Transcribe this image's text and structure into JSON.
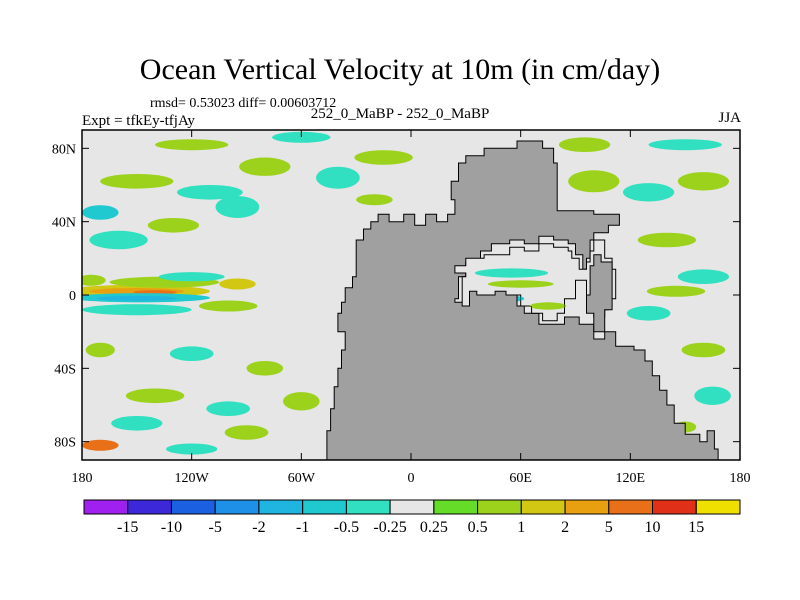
{
  "chart_data": {
    "type": "heatmap",
    "title": "Ocean Vertical Velocity at 10m (in cm/day)",
    "stats_text": "rmsd= 0.53023  diff= 0.00603712",
    "expt_text": "Expt = tfkEy-tfjAy",
    "case_text": "252_0_MaBP - 252_0_MaBP",
    "season_text": "JJA",
    "x_tick_labels": [
      "180",
      "120W",
      "60W",
      "0",
      "60E",
      "120E",
      "180"
    ],
    "x_tick_values": [
      -180,
      -120,
      -60,
      0,
      60,
      120,
      180
    ],
    "y_tick_labels": [
      "80N",
      "40N",
      "0",
      "40S",
      "80S"
    ],
    "y_tick_values": [
      80,
      40,
      0,
      -40,
      -80
    ],
    "xlim": [
      -180,
      180
    ],
    "ylim": [
      -90,
      90
    ],
    "land_color": "#a0a0a0",
    "colorbar": {
      "labels": [
        "-15",
        "-10",
        "-5",
        "-2",
        "-1",
        "-0.5",
        "-0.25",
        "0.25",
        "0.5",
        "1",
        "2",
        "5",
        "10",
        "15"
      ],
      "colors": [
        "#a020f0",
        "#3c28d8",
        "#1a60e0",
        "#1e90e8",
        "#20b4e0",
        "#20c8d0",
        "#30e0c0",
        "#e6e6e6",
        "#64dc28",
        "#9cd21c",
        "#d2c814",
        "#e8a010",
        "#e87018",
        "#e03018",
        "#f0e000"
      ]
    },
    "land_polygon": [
      [
        -46,
        -80
      ],
      [
        -46,
        -74
      ],
      [
        -44,
        -74
      ],
      [
        -44,
        -62
      ],
      [
        -42,
        -62
      ],
      [
        -42,
        -50
      ],
      [
        -40,
        -50
      ],
      [
        -40,
        -40
      ],
      [
        -38,
        -40
      ],
      [
        -38,
        -30
      ],
      [
        -36,
        -30
      ],
      [
        -36,
        -20
      ],
      [
        -40,
        -20
      ],
      [
        -40,
        -10
      ],
      [
        -38,
        -10
      ],
      [
        -38,
        -4
      ],
      [
        -36,
        -4
      ],
      [
        -36,
        4
      ],
      [
        -32,
        4
      ],
      [
        -32,
        10
      ],
      [
        -30,
        10
      ],
      [
        -30,
        20
      ],
      [
        -30,
        30
      ],
      [
        -26,
        30
      ],
      [
        -26,
        36
      ],
      [
        -22,
        36
      ],
      [
        -22,
        40
      ],
      [
        -18,
        40
      ],
      [
        -18,
        44
      ],
      [
        -12,
        44
      ],
      [
        -12,
        40
      ],
      [
        -4,
        40
      ],
      [
        -4,
        44
      ],
      [
        2,
        44
      ],
      [
        2,
        38
      ],
      [
        8,
        38
      ],
      [
        8,
        44
      ],
      [
        14,
        44
      ],
      [
        14,
        40
      ],
      [
        20,
        40
      ],
      [
        20,
        44
      ],
      [
        24,
        44
      ],
      [
        24,
        52
      ],
      [
        22,
        52
      ],
      [
        22,
        62
      ],
      [
        26,
        62
      ],
      [
        26,
        72
      ],
      [
        30,
        72
      ],
      [
        30,
        76
      ],
      [
        40,
        76
      ],
      [
        40,
        80
      ],
      [
        58,
        80
      ],
      [
        58,
        84
      ],
      [
        72,
        84
      ],
      [
        72,
        80
      ],
      [
        78,
        80
      ],
      [
        78,
        72
      ],
      [
        80,
        72
      ],
      [
        80,
        46
      ],
      [
        100,
        46
      ],
      [
        100,
        44
      ],
      [
        114,
        44
      ],
      [
        114,
        38
      ],
      [
        108,
        38
      ],
      [
        108,
        34
      ],
      [
        100,
        34
      ],
      [
        100,
        30
      ],
      [
        98,
        30
      ],
      [
        98,
        20
      ],
      [
        96,
        20
      ],
      [
        96,
        14
      ],
      [
        94,
        14
      ],
      [
        94,
        22
      ],
      [
        90,
        22
      ],
      [
        90,
        28
      ],
      [
        86,
        28
      ],
      [
        86,
        30
      ],
      [
        78,
        30
      ],
      [
        78,
        32
      ],
      [
        70,
        32
      ],
      [
        70,
        28
      ],
      [
        62,
        28
      ],
      [
        62,
        30
      ],
      [
        54,
        30
      ],
      [
        54,
        28
      ],
      [
        44,
        28
      ],
      [
        44,
        24
      ],
      [
        38,
        24
      ],
      [
        38,
        18
      ],
      [
        30,
        18
      ],
      [
        30,
        10
      ],
      [
        26,
        10
      ],
      [
        26,
        -2
      ],
      [
        24,
        -2
      ],
      [
        24,
        -4
      ],
      [
        30,
        -4
      ],
      [
        30,
        4
      ],
      [
        34,
        4
      ],
      [
        34,
        6
      ],
      [
        46,
        6
      ],
      [
        46,
        4
      ],
      [
        58,
        4
      ],
      [
        58,
        -6
      ],
      [
        62,
        -6
      ],
      [
        62,
        -10
      ],
      [
        70,
        -10
      ],
      [
        70,
        -16
      ],
      [
        84,
        -16
      ],
      [
        84,
        -12
      ],
      [
        92,
        -12
      ],
      [
        92,
        -16
      ],
      [
        100,
        -16
      ],
      [
        100,
        -24
      ],
      [
        106,
        -24
      ],
      [
        106,
        -20
      ],
      [
        112,
        -20
      ],
      [
        112,
        -28
      ],
      [
        122,
        -28
      ],
      [
        122,
        -30
      ],
      [
        128,
        -30
      ],
      [
        128,
        -36
      ],
      [
        132,
        -36
      ],
      [
        132,
        -44
      ],
      [
        136,
        -44
      ],
      [
        136,
        -52
      ],
      [
        140,
        -52
      ],
      [
        140,
        -60
      ],
      [
        144,
        -60
      ],
      [
        144,
        -70
      ],
      [
        150,
        -70
      ],
      [
        150,
        -76
      ],
      [
        158,
        -76
      ],
      [
        158,
        -80
      ],
      [
        162,
        -80
      ],
      [
        162,
        -74
      ],
      [
        166,
        -74
      ],
      [
        166,
        -84
      ],
      [
        168,
        -84
      ],
      [
        168,
        -90
      ],
      [
        -46,
        -90
      ]
    ],
    "inner_sea": [
      [
        24,
        16
      ],
      [
        30,
        16
      ],
      [
        30,
        20
      ],
      [
        40,
        20
      ],
      [
        40,
        22
      ],
      [
        54,
        22
      ],
      [
        54,
        26
      ],
      [
        62,
        26
      ],
      [
        62,
        24
      ],
      [
        70,
        24
      ],
      [
        70,
        28
      ],
      [
        78,
        28
      ],
      [
        78,
        26
      ],
      [
        86,
        26
      ],
      [
        86,
        24
      ],
      [
        88,
        24
      ],
      [
        88,
        20
      ],
      [
        92,
        20
      ],
      [
        92,
        14
      ],
      [
        96,
        14
      ],
      [
        96,
        18
      ],
      [
        98,
        18
      ],
      [
        98,
        24
      ],
      [
        100,
        24
      ],
      [
        100,
        30
      ],
      [
        106,
        30
      ],
      [
        106,
        20
      ],
      [
        110,
        20
      ],
      [
        110,
        14
      ],
      [
        112,
        14
      ],
      [
        112,
        -2
      ],
      [
        108,
        -2
      ],
      [
        108,
        -8
      ],
      [
        106,
        -8
      ],
      [
        106,
        -12
      ],
      [
        100,
        -12
      ],
      [
        100,
        -2
      ],
      [
        96,
        -2
      ],
      [
        96,
        8
      ],
      [
        90,
        8
      ],
      [
        90,
        -2
      ],
      [
        84,
        -2
      ],
      [
        84,
        -10
      ],
      [
        80,
        -10
      ],
      [
        80,
        -14
      ],
      [
        72,
        -14
      ],
      [
        72,
        -10
      ],
      [
        66,
        -10
      ],
      [
        66,
        -6
      ],
      [
        60,
        -6
      ],
      [
        60,
        0
      ],
      [
        52,
        0
      ],
      [
        52,
        2
      ],
      [
        46,
        2
      ],
      [
        46,
        0
      ],
      [
        36,
        0
      ],
      [
        36,
        2
      ],
      [
        32,
        2
      ],
      [
        32,
        -6
      ],
      [
        28,
        -6
      ],
      [
        28,
        0
      ],
      [
        28,
        10
      ],
      [
        30,
        10
      ],
      [
        30,
        12
      ],
      [
        24,
        12
      ]
    ],
    "inner_land": [
      [
        96,
        0
      ],
      [
        98,
        0
      ],
      [
        98,
        16
      ],
      [
        100,
        16
      ],
      [
        100,
        22
      ],
      [
        104,
        22
      ],
      [
        104,
        18
      ],
      [
        110,
        18
      ],
      [
        110,
        -8
      ],
      [
        106,
        -8
      ],
      [
        106,
        -20
      ],
      [
        100,
        -20
      ],
      [
        100,
        -10
      ],
      [
        96,
        -10
      ]
    ],
    "anomaly_blobs": [
      {
        "lon": -150,
        "lat": 2,
        "rx": 40,
        "ry": 3.5,
        "v": 1
      },
      {
        "lon": -150,
        "lat": 2,
        "rx": 26,
        "ry": 1.8,
        "v": 2
      },
      {
        "lon": -140,
        "lat": 1.5,
        "rx": 12,
        "ry": 1.2,
        "v": 5
      },
      {
        "lon": -148,
        "lat": -1.5,
        "rx": 38,
        "ry": 2.5,
        "v": -1
      },
      {
        "lon": -150,
        "lat": -1.8,
        "rx": 22,
        "ry": 1.3,
        "v": -2
      },
      {
        "lon": -135,
        "lat": 7,
        "rx": 30,
        "ry": 3,
        "v": 0.5
      },
      {
        "lon": -120,
        "lat": 10,
        "rx": 18,
        "ry": 2.5,
        "v": -0.5
      },
      {
        "lon": -95,
        "lat": 6,
        "rx": 10,
        "ry": 3,
        "v": 1
      },
      {
        "lon": -175,
        "lat": 8,
        "rx": 8,
        "ry": 3,
        "v": 0.5
      },
      {
        "lon": -150,
        "lat": -8,
        "rx": 30,
        "ry": 3,
        "v": -0.5
      },
      {
        "lon": -100,
        "lat": -6,
        "rx": 16,
        "ry": 3,
        "v": 0.5
      },
      {
        "lon": -160,
        "lat": 30,
        "rx": 16,
        "ry": 5,
        "v": -0.5
      },
      {
        "lon": -130,
        "lat": 38,
        "rx": 14,
        "ry": 4,
        "v": 0.5
      },
      {
        "lon": -95,
        "lat": 48,
        "rx": 12,
        "ry": 6,
        "v": -0.5
      },
      {
        "lon": -110,
        "lat": 56,
        "rx": 18,
        "ry": 4,
        "v": -0.5
      },
      {
        "lon": -150,
        "lat": 62,
        "rx": 20,
        "ry": 4,
        "v": 0.5
      },
      {
        "lon": -80,
        "lat": 70,
        "rx": 14,
        "ry": 5,
        "v": 0.5
      },
      {
        "lon": -40,
        "lat": 64,
        "rx": 12,
        "ry": 6,
        "v": -0.5
      },
      {
        "lon": -15,
        "lat": 75,
        "rx": 16,
        "ry": 4,
        "v": 0.5
      },
      {
        "lon": -120,
        "lat": 82,
        "rx": 20,
        "ry": 3,
        "v": 0.5
      },
      {
        "lon": -60,
        "lat": 86,
        "rx": 16,
        "ry": 3,
        "v": -0.5
      },
      {
        "lon": -20,
        "lat": 52,
        "rx": 10,
        "ry": 3,
        "v": 0.5
      },
      {
        "lon": -170,
        "lat": 45,
        "rx": 10,
        "ry": 4,
        "v": -1
      },
      {
        "lon": -170,
        "lat": -30,
        "rx": 8,
        "ry": 4,
        "v": 0.5
      },
      {
        "lon": -120,
        "lat": -32,
        "rx": 12,
        "ry": 4,
        "v": -0.5
      },
      {
        "lon": -80,
        "lat": -40,
        "rx": 10,
        "ry": 4,
        "v": 0.5
      },
      {
        "lon": -140,
        "lat": -55,
        "rx": 16,
        "ry": 4,
        "v": 0.5
      },
      {
        "lon": -100,
        "lat": -62,
        "rx": 12,
        "ry": 4,
        "v": -0.5
      },
      {
        "lon": -60,
        "lat": -58,
        "rx": 10,
        "ry": 5,
        "v": 0.5
      },
      {
        "lon": -150,
        "lat": -70,
        "rx": 14,
        "ry": 4,
        "v": -0.5
      },
      {
        "lon": -90,
        "lat": -75,
        "rx": 12,
        "ry": 4,
        "v": 0.5
      },
      {
        "lon": -170,
        "lat": -82,
        "rx": 10,
        "ry": 3,
        "v": 5
      },
      {
        "lon": -120,
        "lat": -84,
        "rx": 14,
        "ry": 3,
        "v": -0.5
      },
      {
        "lon": -30,
        "lat": -58,
        "rx": 8,
        "ry": 4,
        "v": 0.5
      },
      {
        "lon": 100,
        "lat": 62,
        "rx": 14,
        "ry": 6,
        "v": 0.5
      },
      {
        "lon": 130,
        "lat": 56,
        "rx": 14,
        "ry": 5,
        "v": -0.5
      },
      {
        "lon": 160,
        "lat": 62,
        "rx": 14,
        "ry": 5,
        "v": 0.5
      },
      {
        "lon": 95,
        "lat": 82,
        "rx": 14,
        "ry": 4,
        "v": 0.5
      },
      {
        "lon": 150,
        "lat": 82,
        "rx": 20,
        "ry": 3,
        "v": -0.5
      },
      {
        "lon": 140,
        "lat": 30,
        "rx": 16,
        "ry": 4,
        "v": 0.5
      },
      {
        "lon": 160,
        "lat": 10,
        "rx": 14,
        "ry": 4,
        "v": -0.5
      },
      {
        "lon": 145,
        "lat": 2,
        "rx": 16,
        "ry": 3,
        "v": 0.5
      },
      {
        "lon": 130,
        "lat": -10,
        "rx": 12,
        "ry": 4,
        "v": -0.5
      },
      {
        "lon": 160,
        "lat": -30,
        "rx": 12,
        "ry": 4,
        "v": 0.5
      },
      {
        "lon": 165,
        "lat": -55,
        "rx": 10,
        "ry": 5,
        "v": -0.5
      },
      {
        "lon": 150,
        "lat": -72,
        "rx": 6,
        "ry": 3,
        "v": 0.5
      },
      {
        "lon": 55,
        "lat": 12,
        "rx": 20,
        "ry": 2.5,
        "v": -0.5
      },
      {
        "lon": 60,
        "lat": 6,
        "rx": 18,
        "ry": 2,
        "v": 0.5
      },
      {
        "lon": 50,
        "lat": -2,
        "rx": 12,
        "ry": 2,
        "v": -1
      },
      {
        "lon": 75,
        "lat": -6,
        "rx": 10,
        "ry": 2,
        "v": 0.5
      },
      {
        "lon": 40,
        "lat": -14,
        "rx": 8,
        "ry": 3,
        "v": -0.5
      },
      {
        "lon": 60,
        "lat": -24,
        "rx": 14,
        "ry": 3,
        "v": 0.5
      },
      {
        "lon": 100,
        "lat": -30,
        "rx": 12,
        "ry": 3,
        "v": -0.5
      },
      {
        "lon": 50,
        "lat": -38,
        "rx": 14,
        "ry": 3,
        "v": 0.5
      },
      {
        "lon": 90,
        "lat": -44,
        "rx": 10,
        "ry": 3,
        "v": -0.5
      },
      {
        "lon": 40,
        "lat": 62,
        "rx": 14,
        "ry": 4,
        "v": 0.5
      },
      {
        "lon": 60,
        "lat": 70,
        "rx": 10,
        "ry": 4,
        "v": -0.5
      }
    ]
  }
}
